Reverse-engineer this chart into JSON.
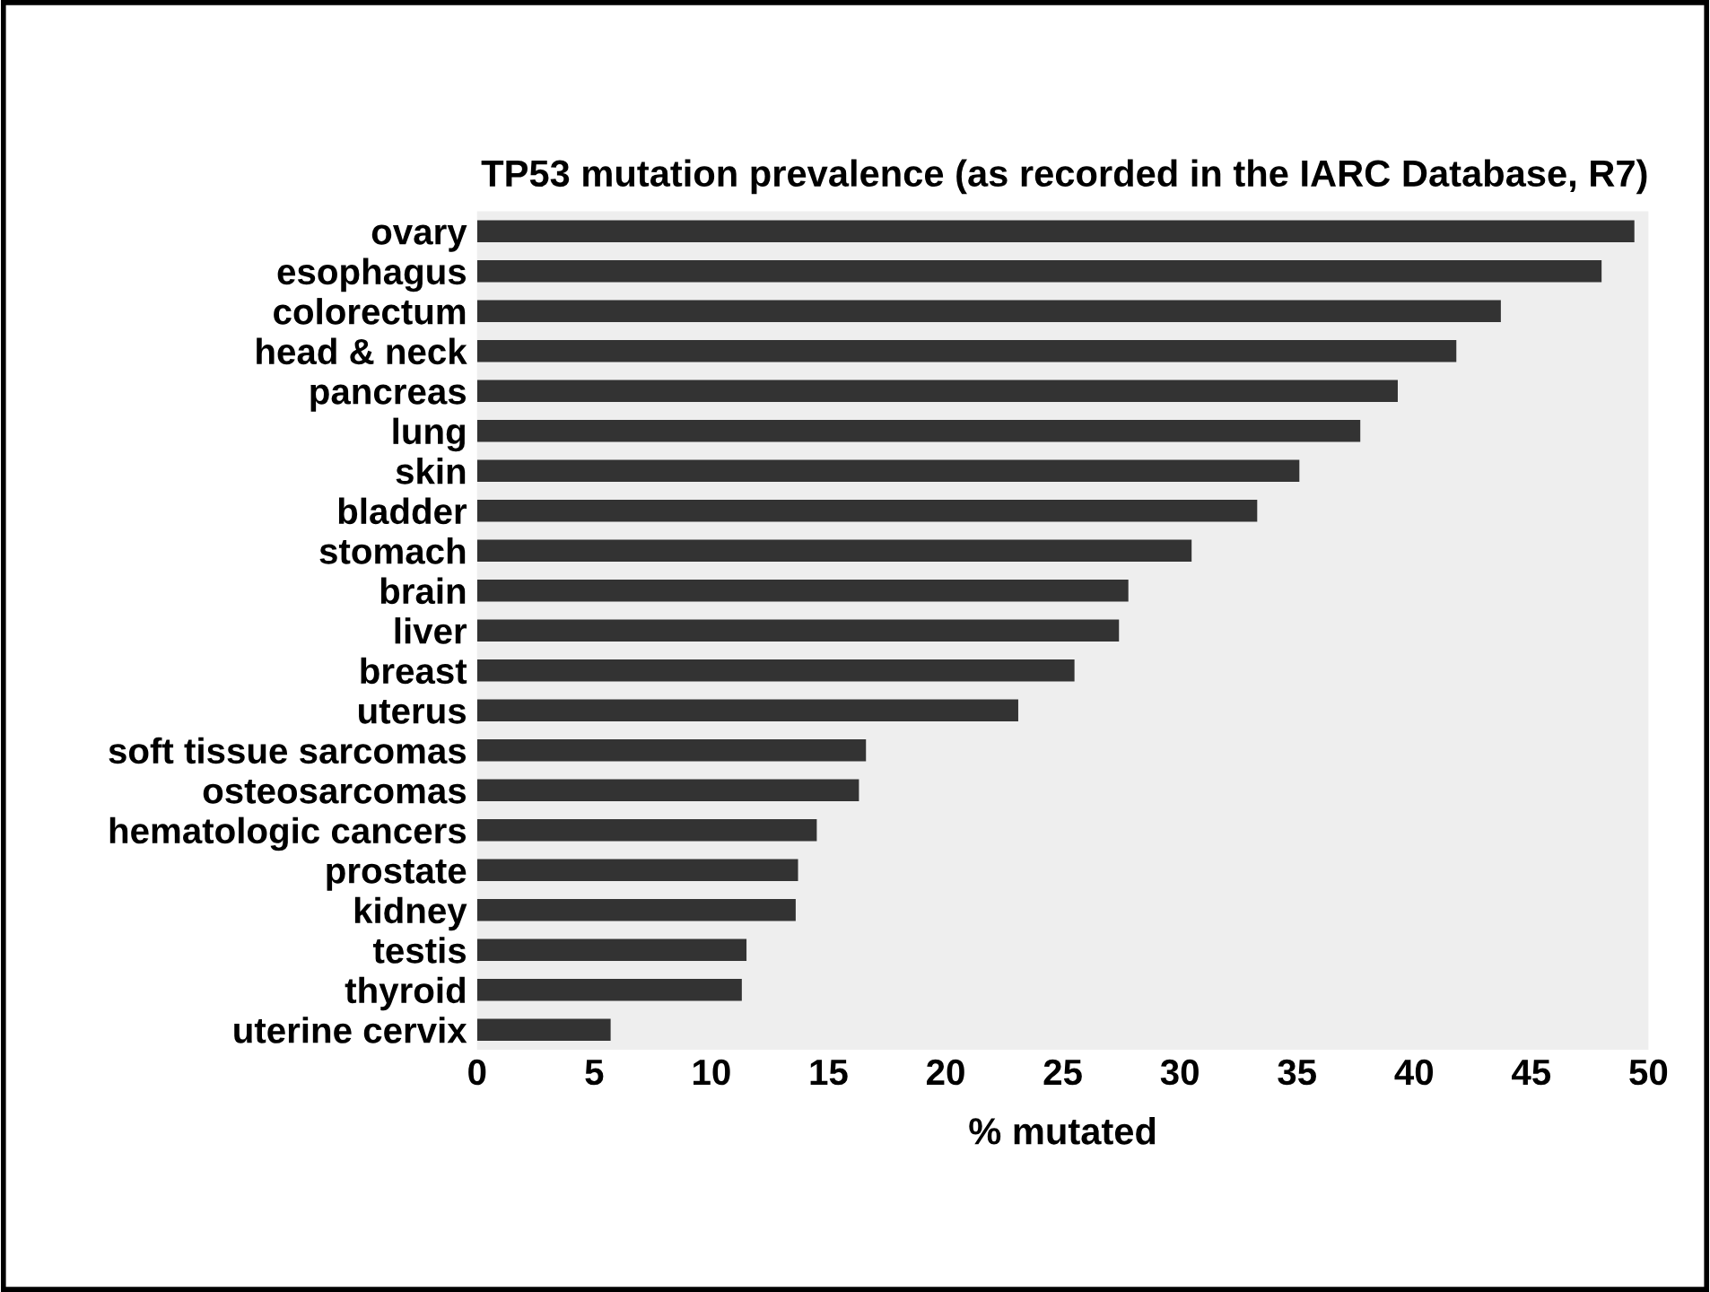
{
  "chart_data": {
    "type": "bar",
    "orientation": "horizontal",
    "title": "TP53 mutation prevalence (as recorded in the IARC Database, R7)",
    "xlabel": "% mutated",
    "categories": [
      "ovary",
      "esophagus",
      "colorectum",
      "head & neck",
      "pancreas",
      "lung",
      "skin",
      "bladder",
      "stomach",
      "brain",
      "liver",
      "breast",
      "uterus",
      "soft tissue sarcomas",
      "osteosarcomas",
      "hematologic cancers",
      "prostate",
      "kidney",
      "testis",
      "thyroid",
      "uterine cervix"
    ],
    "values": [
      49.4,
      48.0,
      43.7,
      41.8,
      39.3,
      37.7,
      35.1,
      33.3,
      30.5,
      27.8,
      27.4,
      25.5,
      23.1,
      16.6,
      16.3,
      14.5,
      13.7,
      13.6,
      11.5,
      11.3,
      5.7
    ],
    "color": "#333333",
    "xlim": [
      0,
      50
    ],
    "xticks": [
      0,
      5,
      10,
      15,
      20,
      25,
      30,
      35,
      40,
      45,
      50
    ],
    "grid": false
  }
}
